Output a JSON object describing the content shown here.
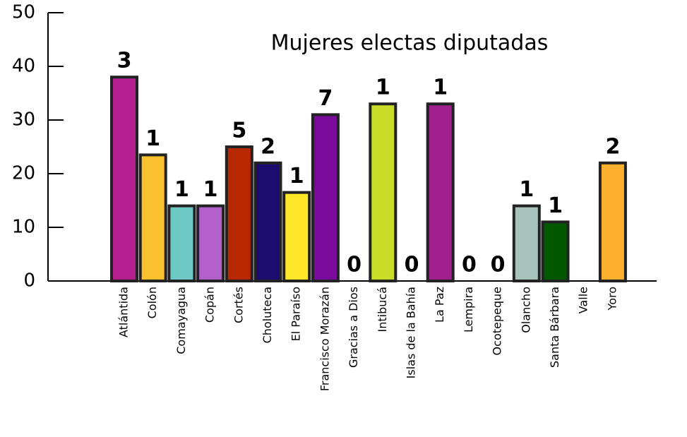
{
  "chart_data": {
    "type": "bar",
    "title": "Mujeres electas diputadas",
    "categories": [
      "Atlántida",
      "Colón",
      "Comayagua",
      "Copán",
      "Cortés",
      "Choluteca",
      "El Paraíso",
      "Francisco Morazán",
      "Gracias a Dios",
      "Intibucá",
      "Islas de la Bahía",
      "La Paz",
      "Lempira",
      "Ocotepeque",
      "Olancho",
      "Santa Bárbara",
      "Valle",
      "Yoro"
    ],
    "values": [
      38,
      23.5,
      14,
      14,
      25,
      22,
      16.5,
      31,
      0,
      33,
      0,
      33,
      0,
      0,
      14,
      11,
      0,
      22
    ],
    "counts": [
      3,
      1,
      1,
      1,
      5,
      2,
      1,
      7,
      0,
      1,
      0,
      1,
      0,
      0,
      1,
      1,
      null,
      2
    ],
    "colors": [
      "#b41e8e",
      "#fbc02d",
      "#6ec9c4",
      "#b060c8",
      "#b82800",
      "#1c0c6e",
      "#ffe82a",
      "#7a0a9c",
      "#333333",
      "#c8dc28",
      "#333333",
      "#a0208c",
      "#333333",
      "#333333",
      "#a8c4bc",
      "#005800",
      "#333333",
      "#ffb02e"
    ],
    "ylim": [
      0,
      50
    ],
    "yticks": [
      0,
      10,
      20,
      30,
      40,
      50
    ]
  }
}
